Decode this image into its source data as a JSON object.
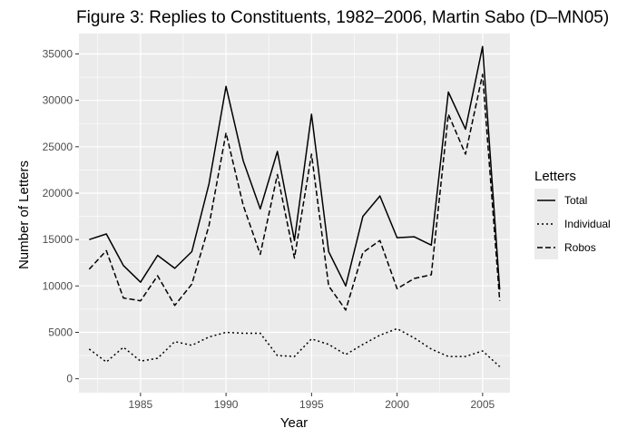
{
  "chart_data": {
    "type": "line",
    "title": "Figure 3: Replies to Constituents, 1982–2006, Martin Sabo (D–MN05)",
    "xlabel": "Year",
    "ylabel": "Number of Letters",
    "xlim": [
      1981.4,
      2006.6
    ],
    "ylim": [
      -1500,
      37200
    ],
    "x_ticks": [
      1985,
      1990,
      1995,
      2000,
      2005
    ],
    "y_ticks": [
      0,
      5000,
      10000,
      15000,
      20000,
      25000,
      30000,
      35000
    ],
    "grid": true,
    "background": "#ebebeb",
    "legend": {
      "title": "Letters",
      "position": "right"
    },
    "x": [
      1982,
      1983,
      1984,
      1985,
      1986,
      1987,
      1988,
      1989,
      1990,
      1991,
      1992,
      1993,
      1994,
      1995,
      1996,
      1997,
      1998,
      1999,
      2000,
      2001,
      2002,
      2003,
      2004,
      2005,
      2006
    ],
    "series": [
      {
        "name": "Total",
        "dash": "solid",
        "values": [
          15000,
          15600,
          12200,
          10400,
          13300,
          11900,
          13700,
          21000,
          31500,
          23500,
          18300,
          24500,
          14900,
          28500,
          13700,
          10000,
          17500,
          19700,
          15200,
          15300,
          14400,
          30900,
          26900,
          35800,
          9600
        ]
      },
      {
        "name": "Individual",
        "dash": "dotted",
        "values": [
          3200,
          1800,
          3400,
          1900,
          2200,
          4000,
          3600,
          4500,
          5000,
          4900,
          4900,
          2500,
          2400,
          4300,
          3700,
          2600,
          3700,
          4700,
          5400,
          4400,
          3200,
          2400,
          2400,
          3000,
          1300
        ]
      },
      {
        "name": "Robos",
        "dash": "dashed",
        "values": [
          11800,
          13800,
          8700,
          8400,
          11100,
          7900,
          10200,
          16500,
          26500,
          18700,
          13400,
          22000,
          13000,
          24200,
          10000,
          7400,
          13600,
          14900,
          9700,
          10800,
          11200,
          28500,
          24200,
          32800,
          8400
        ]
      }
    ]
  }
}
